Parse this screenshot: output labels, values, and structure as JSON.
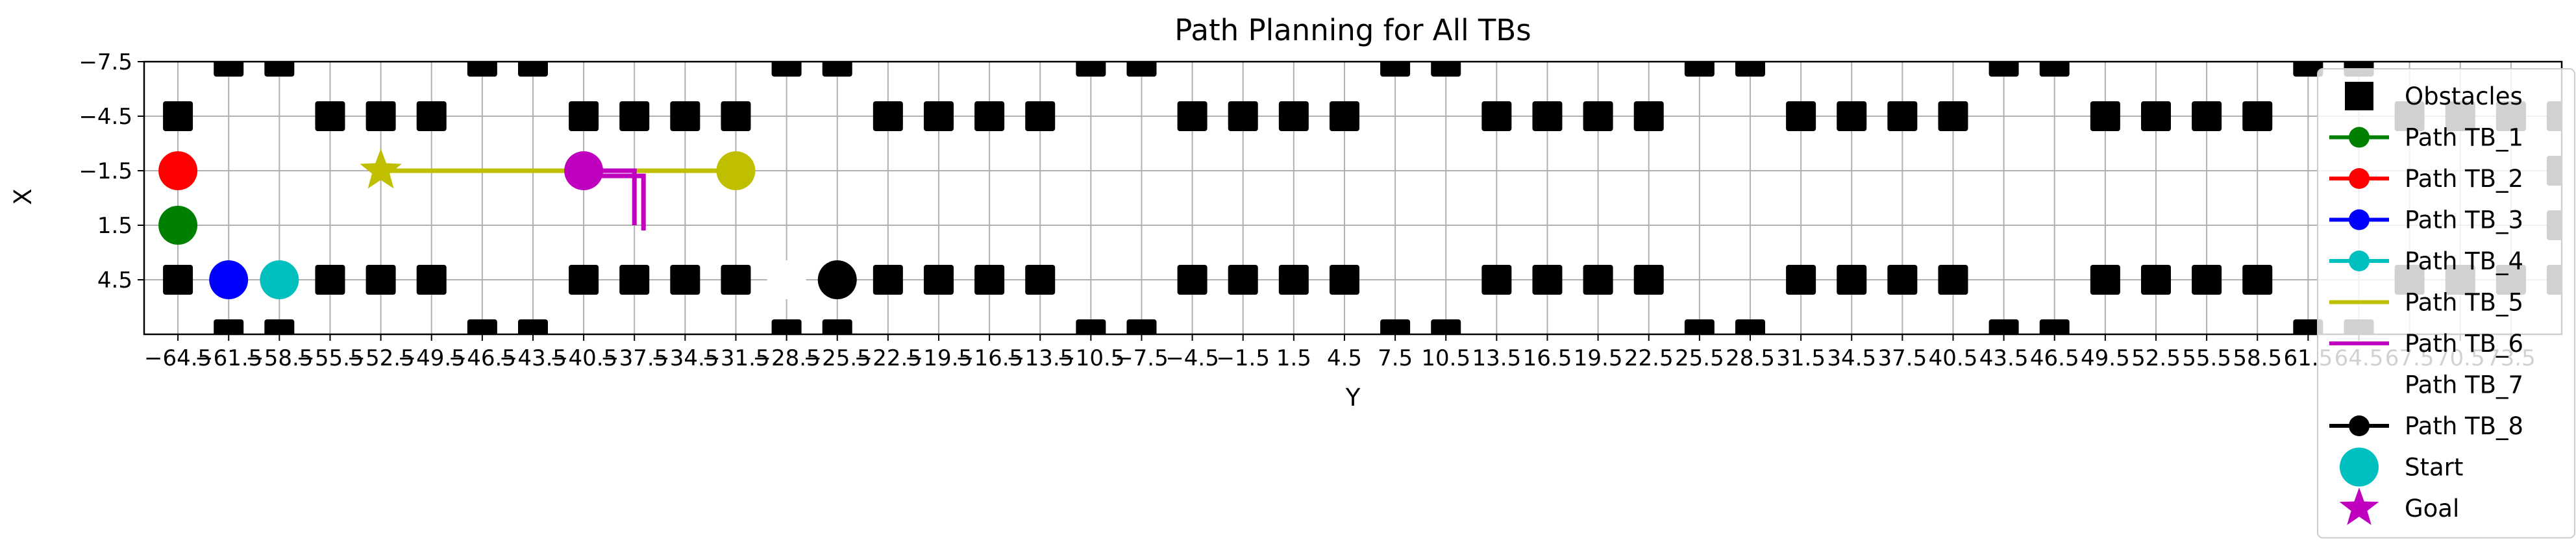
{
  "chart_data": {
    "type": "scatter",
    "title": "Path Planning for All TBs",
    "xlabel": "Y",
    "ylabel": "X",
    "xlim": [
      -66.5,
      76.5
    ],
    "ylim": [
      7.5,
      -7.5
    ],
    "x_ticks": [
      -64.5,
      -61.5,
      -58.5,
      -55.5,
      -52.5,
      -49.5,
      -46.5,
      -43.5,
      -40.5,
      -37.5,
      -34.5,
      -31.5,
      -28.5,
      -25.5,
      -22.5,
      -19.5,
      -16.5,
      -13.5,
      -10.5,
      -7.5,
      -4.5,
      -1.5,
      1.5,
      4.5,
      7.5,
      10.5,
      13.5,
      16.5,
      19.5,
      22.5,
      25.5,
      28.5,
      31.5,
      34.5,
      37.5,
      40.5,
      43.5,
      46.5,
      49.5,
      52.5,
      55.5,
      58.5,
      61.5,
      64.5,
      67.5,
      70.5,
      73.5
    ],
    "x_tick_labels": [
      "−64.5",
      "−61.5",
      "−58.5",
      "−55.5",
      "−52.5",
      "−49.5",
      "−46.5",
      "−43.5",
      "−40.5",
      "−37.5",
      "−34.5",
      "−31.5",
      "−28.5",
      "−25.5",
      "−22.5",
      "−19.5",
      "−16.5",
      "−13.5",
      "−10.5",
      "−7.5",
      "−4.5",
      "−1.5",
      "1.5",
      "4.5",
      "7.5",
      "10.5",
      "13.5",
      "16.5",
      "19.5",
      "22.5",
      "25.5",
      "28.5",
      "31.5",
      "34.5",
      "37.5",
      "40.5",
      "43.5",
      "46.5",
      "49.5",
      "52.5",
      "55.5",
      "58.5",
      "61.5",
      "64.5",
      "67.5",
      "70.5",
      "73.5"
    ],
    "y_ticks": [
      -7.5,
      -4.5,
      -1.5,
      1.5,
      4.5
    ],
    "y_tick_labels": [
      "−7.5",
      "−4.5",
      "−1.5",
      "1.5",
      "4.5"
    ],
    "grid": true,
    "legend_position": "right",
    "obstacles": {
      "color": "#000000",
      "top_row_y": -7.5,
      "top_row_x": [
        -61.5,
        -58.5,
        -46.5,
        -43.5,
        -28.5,
        -25.5,
        -10.5,
        -7.5,
        7.5,
        10.5,
        25.5,
        28.5,
        43.5,
        46.5,
        61.5,
        64.5
      ],
      "inner_top_y": -4.5,
      "inner_top_x": [
        -64.5,
        -55.5,
        -52.5,
        -49.5,
        -40.5,
        -37.5,
        -34.5,
        -31.5,
        -22.5,
        -19.5,
        -16.5,
        -13.5,
        -4.5,
        -1.5,
        1.5,
        4.5,
        13.5,
        16.5,
        19.5,
        22.5,
        31.5,
        34.5,
        37.5,
        40.5,
        49.5,
        52.5,
        55.5,
        58.5,
        67.5,
        70.5,
        73.5,
        76.5
      ],
      "inner_bottom_y": 4.5,
      "inner_bottom_x": [
        -64.5,
        -55.5,
        -52.5,
        -49.5,
        -40.5,
        -37.5,
        -34.5,
        -31.5,
        -22.5,
        -19.5,
        -16.5,
        -13.5,
        -4.5,
        -1.5,
        1.5,
        4.5,
        13.5,
        16.5,
        19.5,
        22.5,
        31.5,
        34.5,
        37.5,
        40.5,
        49.5,
        52.5,
        55.5,
        58.5,
        67.5,
        70.5,
        73.5,
        76.5
      ],
      "bottom_row_y": 7.5,
      "bottom_row_x": [
        -61.5,
        -58.5,
        -46.5,
        -43.5,
        -28.5,
        -25.5,
        -10.5,
        -7.5,
        7.5,
        10.5,
        25.5,
        28.5,
        43.5,
        46.5,
        61.5,
        64.5
      ],
      "side_x": [
        -67.5,
        76.5
      ],
      "side_y": [
        -1.5,
        1.5
      ]
    },
    "series": [
      {
        "name": "Path TB_1",
        "color": "#008000",
        "start": [
          -64.5,
          1.5
        ],
        "goal": null,
        "path": [
          [
            -64.5,
            1.5
          ]
        ]
      },
      {
        "name": "Path TB_2",
        "color": "#ff0000",
        "start": [
          -64.5,
          -1.5
        ],
        "goal": null,
        "path": [
          [
            -64.5,
            -1.5
          ]
        ]
      },
      {
        "name": "Path TB_3",
        "color": "#0000ff",
        "start": [
          -61.5,
          4.5
        ],
        "goal": null,
        "path": [
          [
            -61.5,
            4.5
          ]
        ]
      },
      {
        "name": "Path TB_4",
        "color": "#00bfbf",
        "start": [
          -58.5,
          4.5
        ],
        "goal": null,
        "path": [
          [
            -58.5,
            4.5
          ]
        ]
      },
      {
        "name": "Path TB_5",
        "color": "#bfbf00",
        "start": [
          -31.5,
          -1.5
        ],
        "goal": [
          -52.5,
          -1.5
        ],
        "path": [
          [
            -31.5,
            -1.5
          ],
          [
            -52.5,
            -1.5
          ]
        ]
      },
      {
        "name": "Path TB_6",
        "color": "#bf00bf",
        "start": [
          -40.5,
          -1.5
        ],
        "goal": null,
        "path": [
          [
            -40.5,
            -1.5
          ],
          [
            -37.5,
            -1.5
          ],
          [
            -37.5,
            1.5
          ]
        ]
      },
      {
        "name": "Path TB_7",
        "color": "#ffffff",
        "start": [
          -28.5,
          4.5
        ],
        "goal": null,
        "path": [
          [
            -28.5,
            4.5
          ]
        ]
      },
      {
        "name": "Path TB_8",
        "color": "#000000",
        "start": [
          -25.5,
          4.5
        ],
        "goal": null,
        "path": [
          [
            -25.5,
            4.5
          ]
        ]
      }
    ],
    "legend": [
      {
        "label": "Obstacles",
        "marker": "square",
        "color": "#000000"
      },
      {
        "label": "Path TB_1",
        "marker": "line-dot",
        "color": "#008000"
      },
      {
        "label": "Path TB_2",
        "marker": "line-dot",
        "color": "#ff0000"
      },
      {
        "label": "Path TB_3",
        "marker": "line-dot",
        "color": "#0000ff"
      },
      {
        "label": "Path TB_4",
        "marker": "line-dot",
        "color": "#00bfbf"
      },
      {
        "label": "Path TB_5",
        "marker": "line",
        "color": "#bfbf00"
      },
      {
        "label": "Path TB_6",
        "marker": "line",
        "color": "#bf00bf"
      },
      {
        "label": "Path TB_7",
        "marker": "line",
        "color": "#ffffff"
      },
      {
        "label": "Path TB_8",
        "marker": "line-dot",
        "color": "#000000"
      },
      {
        "label": "Start",
        "marker": "big-circle",
        "color": "#00bfbf"
      },
      {
        "label": "Goal",
        "marker": "star",
        "color": "#bf00bf"
      }
    ]
  }
}
